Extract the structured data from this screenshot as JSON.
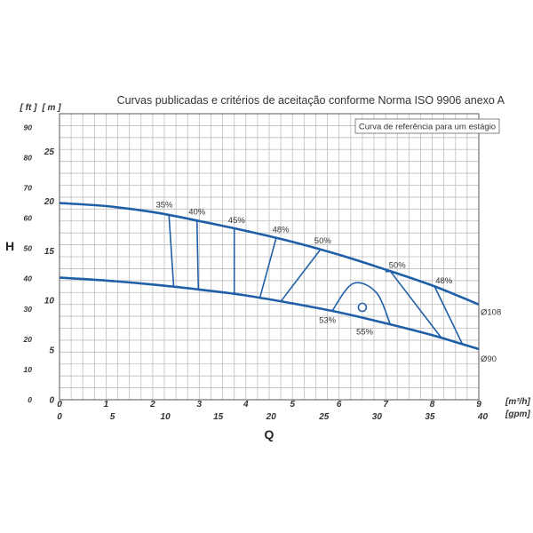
{
  "chart_data": {
    "type": "line",
    "title": "Curvas publicadas e critérios de aceitação conforme Norma ISO 9906 anexo A",
    "legend_box": "Curva de referência para um estágio",
    "legend_placement": "top-right",
    "y_axis_label": "H",
    "x_axis_label": "Q",
    "y_units": {
      "ft": "[ ft ]",
      "m": "[ m ]"
    },
    "x_units": {
      "m3h": "[m³/h]",
      "gpm": "[gpm]"
    },
    "grid": true,
    "xlim": [
      0,
      9
    ],
    "ylim": [
      0,
      28.8
    ],
    "x_ticks_m3h": [
      "0",
      "1",
      "2",
      "3",
      "4",
      "5",
      "6",
      "7",
      "8",
      "9"
    ],
    "x_ticks_gpm": [
      {
        "label": "0",
        "value": 0
      },
      {
        "label": "5",
        "value": 5
      },
      {
        "label": "10",
        "value": 10
      },
      {
        "label": "15",
        "value": 15
      },
      {
        "label": "20",
        "value": 20
      },
      {
        "label": "25",
        "value": 25
      },
      {
        "label": "30",
        "value": 30
      },
      {
        "label": "35",
        "value": 35
      },
      {
        "label": "40",
        "value": 40
      }
    ],
    "y_ticks_m": [
      "0",
      "5",
      "10",
      "15",
      "20",
      "25"
    ],
    "y_ticks_ft": [
      "0",
      "10",
      "20",
      "30",
      "40",
      "50",
      "60",
      "70",
      "80",
      "90"
    ],
    "series": [
      {
        "name": "Ø108",
        "x": [
          0,
          1,
          2,
          3,
          4,
          5,
          6,
          7,
          8,
          9
        ],
        "y": [
          19.8,
          19.5,
          18.9,
          18.0,
          17.0,
          15.9,
          14.6,
          13.1,
          11.5,
          9.6
        ]
      },
      {
        "name": "Ø90",
        "x": [
          0,
          1,
          2,
          3,
          4,
          5,
          6,
          7,
          8,
          9
        ],
        "y": [
          12.3,
          12.0,
          11.6,
          11.1,
          10.5,
          9.7,
          8.8,
          7.7,
          6.5,
          5.1
        ]
      }
    ],
    "efficiency_labels": [
      "35%",
      "40%",
      "45%",
      "48%",
      "50%",
      "53%",
      "55%",
      "50%",
      "48%"
    ],
    "efficiency_point": {
      "label": "55%",
      "x": 6.5,
      "y": 9.3
    }
  }
}
